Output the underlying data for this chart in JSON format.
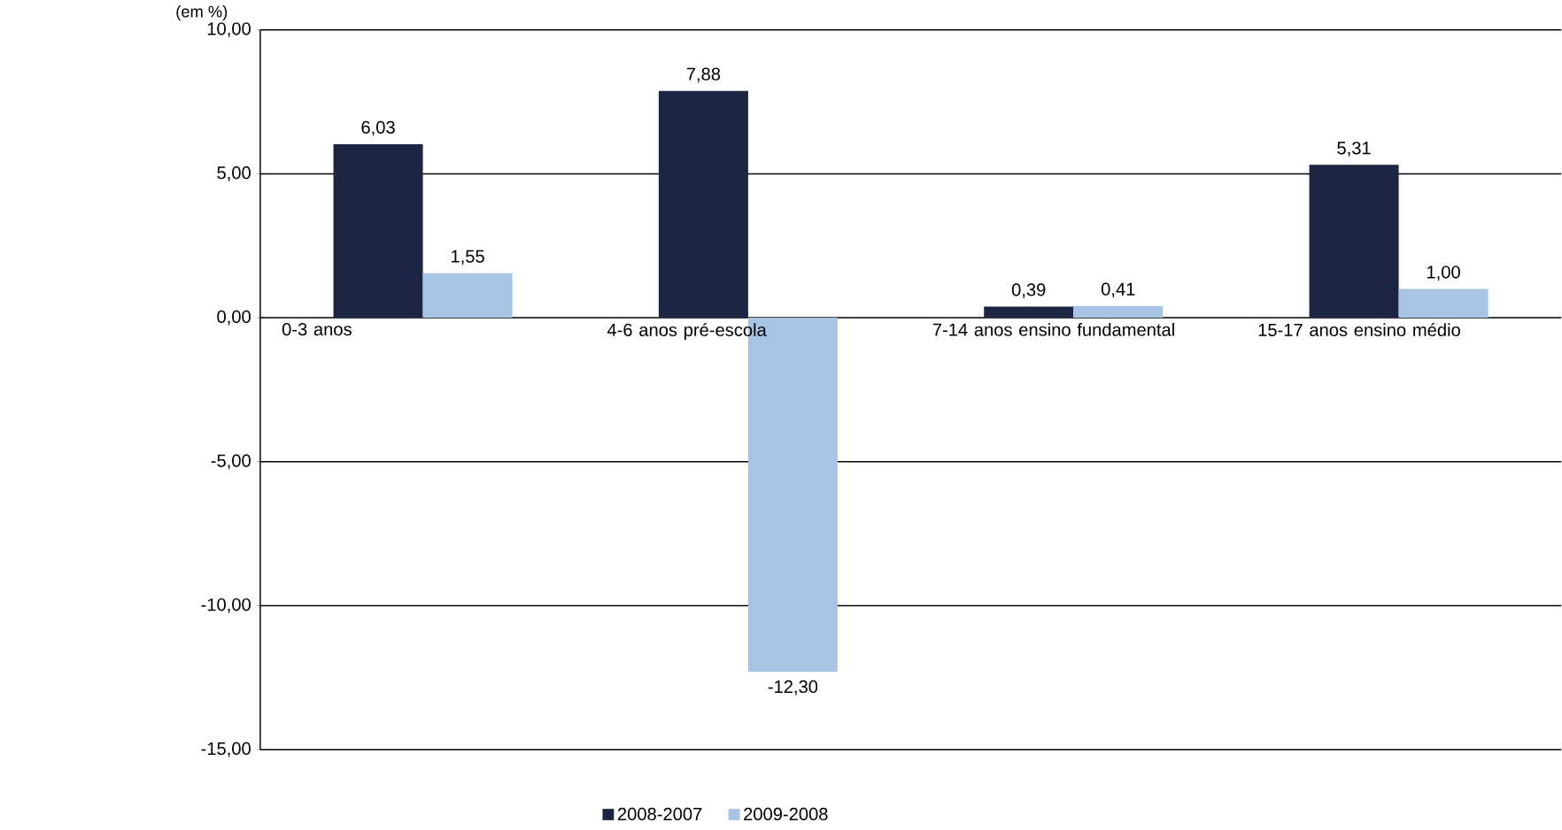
{
  "chart_data": {
    "type": "bar",
    "ylabel": "(em %)",
    "categories": [
      "0-3 anos",
      "4-6 anos pré-escola",
      "7-14 anos ensino fundamental",
      "15-17 anos ensino médio"
    ],
    "series": [
      {
        "name": "2008-2007",
        "color": "#1c2541",
        "values": [
          6.03,
          7.88,
          0.39,
          5.31
        ],
        "value_labels": [
          "6,03",
          "7,88",
          "0,39",
          "5,31"
        ]
      },
      {
        "name": "2009-2008",
        "color": "#a7c4e7",
        "values": [
          1.55,
          -12.3,
          0.41,
          1.0
        ],
        "value_labels": [
          "1,55",
          "-12,30",
          "0,41",
          "1,00"
        ]
      }
    ],
    "ylim": [
      -15,
      10
    ],
    "yticks": [
      {
        "value": -15,
        "label": "-15,00"
      },
      {
        "value": -10,
        "label": "-10,00"
      },
      {
        "value": -5,
        "label": "-5,00"
      },
      {
        "value": 0,
        "label": "0,00"
      },
      {
        "value": 5,
        "label": "5,00"
      },
      {
        "value": 10,
        "label": "10,00"
      }
    ],
    "grid": "y",
    "legend": "bottom"
  }
}
